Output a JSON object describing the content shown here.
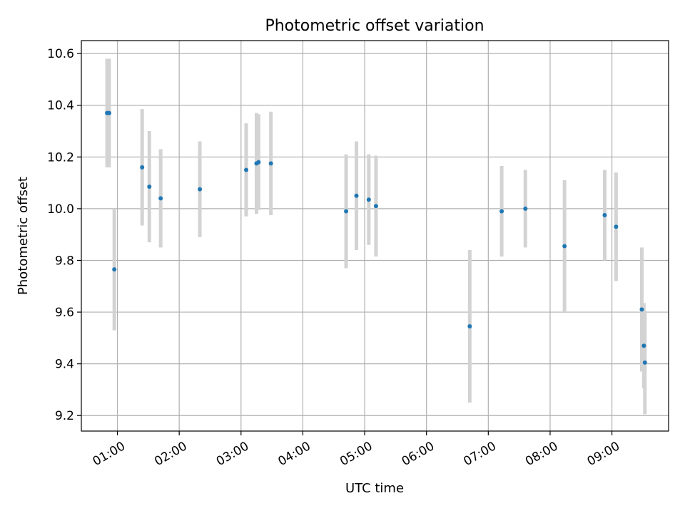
{
  "chart_data": {
    "type": "scatter",
    "title": "Photometric offset variation",
    "xlabel": "UTC time",
    "ylabel": "Photometric offset",
    "xlim": [
      "00:25",
      "09:55"
    ],
    "ylim": [
      9.14,
      10.65
    ],
    "grid": true,
    "x_ticks": [
      "01:00",
      "02:00",
      "03:00",
      "04:00",
      "05:00",
      "06:00",
      "07:00",
      "08:00",
      "09:00"
    ],
    "y_ticks": [
      9.2,
      9.4,
      9.6,
      9.8,
      10.0,
      10.2,
      10.4,
      10.6
    ],
    "marker_color": "#1f77b4",
    "errorbar_color": "#d3d3d3",
    "points": [
      {
        "time": "00:50",
        "y": 10.37,
        "yerr": 0.21
      },
      {
        "time": "00:52",
        "y": 10.37,
        "yerr": 0.21
      },
      {
        "time": "00:57",
        "y": 9.765,
        "yerr": 0.235
      },
      {
        "time": "01:24",
        "y": 10.16,
        "yerr": 0.225
      },
      {
        "time": "01:31",
        "y": 10.085,
        "yerr": 0.215
      },
      {
        "time": "01:42",
        "y": 10.04,
        "yerr": 0.19
      },
      {
        "time": "02:20",
        "y": 10.075,
        "yerr": 0.185
      },
      {
        "time": "03:05",
        "y": 10.15,
        "yerr": 0.18
      },
      {
        "time": "03:15",
        "y": 10.175,
        "yerr": 0.195
      },
      {
        "time": "03:17",
        "y": 10.18,
        "yerr": 0.185
      },
      {
        "time": "03:29",
        "y": 10.175,
        "yerr": 0.2
      },
      {
        "time": "04:42",
        "y": 9.99,
        "yerr": 0.22
      },
      {
        "time": "04:52",
        "y": 10.05,
        "yerr": 0.21
      },
      {
        "time": "05:04",
        "y": 10.035,
        "yerr": 0.175
      },
      {
        "time": "05:11",
        "y": 10.01,
        "yerr": 0.195
      },
      {
        "time": "06:42",
        "y": 9.545,
        "yerr": 0.295
      },
      {
        "time": "07:13",
        "y": 9.99,
        "yerr": 0.175
      },
      {
        "time": "07:36",
        "y": 10.0,
        "yerr": 0.15
      },
      {
        "time": "08:14",
        "y": 9.855,
        "yerr": 0.255
      },
      {
        "time": "08:53",
        "y": 9.975,
        "yerr": 0.175
      },
      {
        "time": "09:04",
        "y": 9.93,
        "yerr": 0.21
      },
      {
        "time": "09:29",
        "y": 9.61,
        "yerr": 0.24
      },
      {
        "time": "09:31",
        "y": 9.47,
        "yerr": 0.165
      },
      {
        "time": "09:32",
        "y": 9.405,
        "yerr": 0.2
      }
    ]
  }
}
